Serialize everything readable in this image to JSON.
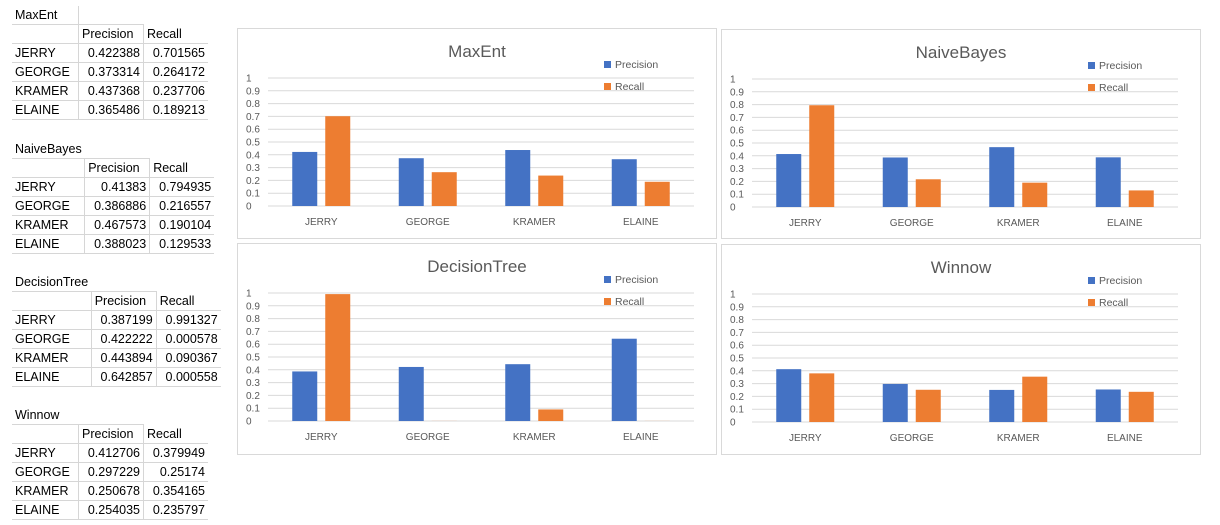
{
  "tables": [
    {
      "name": "MaxEnt",
      "headers": [
        "Precision",
        "Recall"
      ],
      "rows": [
        {
          "label": "JERRY",
          "precision": "0.422388",
          "recall": "0.701565"
        },
        {
          "label": "GEORGE",
          "precision": "0.373314",
          "recall": "0.264172"
        },
        {
          "label": "KRAMER",
          "precision": "0.437368",
          "recall": "0.237706"
        },
        {
          "label": "ELAINE",
          "precision": "0.365486",
          "recall": "0.189213"
        }
      ]
    },
    {
      "name": "NaiveBayes",
      "headers": [
        "Precision",
        "Recall"
      ],
      "rows": [
        {
          "label": "JERRY",
          "precision": "0.41383",
          "recall": "0.794935"
        },
        {
          "label": "GEORGE",
          "precision": "0.386886",
          "recall": "0.216557"
        },
        {
          "label": "KRAMER",
          "precision": "0.467573",
          "recall": "0.190104"
        },
        {
          "label": "ELAINE",
          "precision": "0.388023",
          "recall": "0.129533"
        }
      ]
    },
    {
      "name": "DecisionTree",
      "headers": [
        "Precision",
        "Recall"
      ],
      "rows": [
        {
          "label": "JERRY",
          "precision": "0.387199",
          "recall": "0.991327"
        },
        {
          "label": "GEORGE",
          "precision": "0.422222",
          "recall": "0.000578"
        },
        {
          "label": "KRAMER",
          "precision": "0.443894",
          "recall": "0.090367"
        },
        {
          "label": "ELAINE",
          "precision": "0.642857",
          "recall": "0.000558"
        }
      ]
    },
    {
      "name": "Winnow",
      "headers": [
        "Precision",
        "Recall"
      ],
      "rows": [
        {
          "label": "JERRY",
          "precision": "0.412706",
          "recall": "0.379949"
        },
        {
          "label": "GEORGE",
          "precision": "0.297229",
          "recall": "0.25174"
        },
        {
          "label": "KRAMER",
          "precision": "0.250678",
          "recall": "0.354165"
        },
        {
          "label": "ELAINE",
          "precision": "0.254035",
          "recall": "0.235797"
        }
      ]
    }
  ],
  "colors": {
    "precision": "#4472C4",
    "recall": "#ED7D31"
  },
  "chart_data": [
    {
      "type": "bar",
      "title": "MaxEnt",
      "categories": [
        "JERRY",
        "GEORGE",
        "KRAMER",
        "ELAINE"
      ],
      "series": [
        {
          "name": "Precision",
          "values": [
            0.422388,
            0.373314,
            0.437368,
            0.365486
          ]
        },
        {
          "name": "Recall",
          "values": [
            0.701565,
            0.264172,
            0.237706,
            0.189213
          ]
        }
      ],
      "ylim": [
        0,
        1
      ],
      "yticks": [
        "0",
        "0.1",
        "0.2",
        "0.3",
        "0.4",
        "0.5",
        "0.6",
        "0.7",
        "0.8",
        "0.9",
        "1"
      ],
      "grid": true,
      "legend": "top-right"
    },
    {
      "type": "bar",
      "title": "NaiveBayes",
      "categories": [
        "JERRY",
        "GEORGE",
        "KRAMER",
        "ELAINE"
      ],
      "series": [
        {
          "name": "Precision",
          "values": [
            0.41383,
            0.386886,
            0.467573,
            0.388023
          ]
        },
        {
          "name": "Recall",
          "values": [
            0.794935,
            0.216557,
            0.190104,
            0.129533
          ]
        }
      ],
      "ylim": [
        0,
        1
      ],
      "yticks": [
        "0",
        "0.1",
        "0.2",
        "0.3",
        "0.4",
        "0.5",
        "0.6",
        "0.7",
        "0.8",
        "0.9",
        "1"
      ],
      "grid": true,
      "legend": "top-right"
    },
    {
      "type": "bar",
      "title": "DecisionTree",
      "categories": [
        "JERRY",
        "GEORGE",
        "KRAMER",
        "ELAINE"
      ],
      "series": [
        {
          "name": "Precision",
          "values": [
            0.387199,
            0.422222,
            0.443894,
            0.642857
          ]
        },
        {
          "name": "Recall",
          "values": [
            0.991327,
            0.000578,
            0.090367,
            0.000558
          ]
        }
      ],
      "ylim": [
        0,
        1
      ],
      "yticks": [
        "0",
        "0.1",
        "0.2",
        "0.3",
        "0.4",
        "0.5",
        "0.6",
        "0.7",
        "0.8",
        "0.9",
        "1"
      ],
      "grid": true,
      "legend": "top-right"
    },
    {
      "type": "bar",
      "title": "Winnow",
      "categories": [
        "JERRY",
        "GEORGE",
        "KRAMER",
        "ELAINE"
      ],
      "series": [
        {
          "name": "Precision",
          "values": [
            0.412706,
            0.297229,
            0.250678,
            0.254035
          ]
        },
        {
          "name": "Recall",
          "values": [
            0.379949,
            0.25174,
            0.354165,
            0.235797
          ]
        }
      ],
      "ylim": [
        0,
        1
      ],
      "yticks": [
        "0",
        "0.1",
        "0.2",
        "0.3",
        "0.4",
        "0.5",
        "0.6",
        "0.7",
        "0.8",
        "0.9",
        "1"
      ],
      "grid": true,
      "legend": "top-right"
    }
  ]
}
